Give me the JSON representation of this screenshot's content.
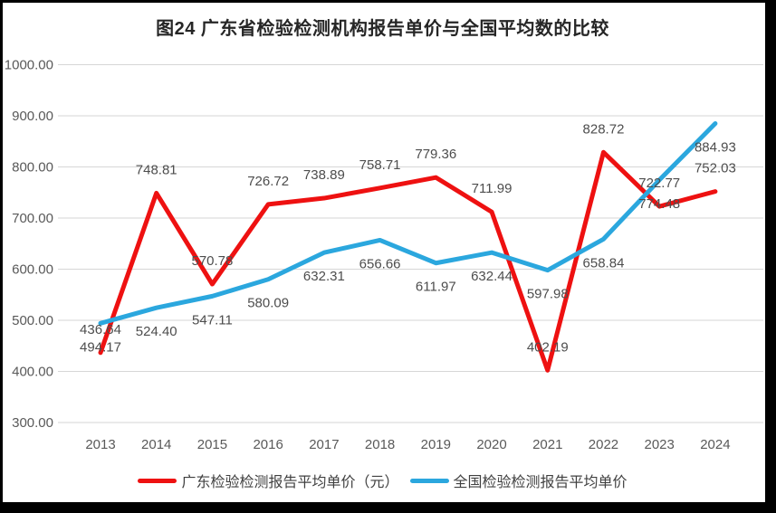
{
  "chart_data": {
    "type": "line",
    "title": "图24  广东省检验检测机构报告单价与全国平均数的比较",
    "categories": [
      "2013",
      "2014",
      "2015",
      "2016",
      "2017",
      "2018",
      "2019",
      "2020",
      "2021",
      "2022",
      "2023",
      "2024"
    ],
    "series": [
      {
        "key": "guangdong",
        "name": "广东检验检测报告平均单价（元）",
        "color": "#ee1111",
        "label_position": "above",
        "values": [
          436.64,
          748.81,
          570.78,
          726.72,
          738.89,
          758.71,
          779.36,
          711.99,
          402.19,
          828.72,
          722.77,
          752.03
        ]
      },
      {
        "key": "national",
        "name": "全国检验检测报告平均单价",
        "color": "#2ba7de",
        "label_position": "below",
        "values": [
          494.17,
          524.4,
          547.11,
          580.09,
          632.31,
          656.66,
          611.97,
          632.44,
          597.98,
          658.84,
          774.48,
          884.93
        ]
      }
    ],
    "y_axis": {
      "min": 300,
      "max": 1000,
      "step": 100,
      "tick_format": "2-decimals"
    },
    "x_axis": {
      "label_row": "years"
    },
    "grid": true,
    "legend_position": "bottom",
    "colors": {
      "grid": "#d6d6d6",
      "axis_ticks": "#595959",
      "data_labels": "#4d4d4d",
      "title": "#262626",
      "legend_text": "#404040",
      "background": "#ffffff",
      "frame_border": "#000000"
    }
  }
}
